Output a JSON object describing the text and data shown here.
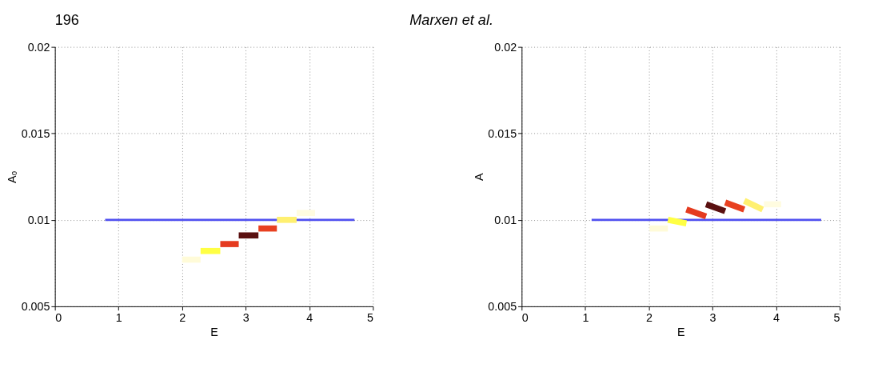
{
  "chart_data": [
    {
      "type": "line",
      "annotations": [
        "196",
        "Marxen et al."
      ],
      "xlabel": "E",
      "ylabel": "A₀",
      "xlim": [
        0,
        5
      ],
      "xticks": [
        0,
        1,
        2,
        3,
        4,
        5
      ],
      "ylim": [
        0.005,
        0.02
      ],
      "yticks": [
        0.005,
        0.01,
        0.015,
        0.02
      ],
      "grid": true,
      "series": [
        {
          "color": "#5050f0",
          "x": [
            0.79,
            4.71
          ],
          "values": [
            0.01,
            0.01
          ]
        },
        {
          "color": "#fffbd8",
          "x": [
            2.0,
            2.29
          ],
          "values": [
            0.0077,
            0.0077
          ]
        },
        {
          "color": "#ffff44",
          "x": [
            2.29,
            2.6
          ],
          "values": [
            0.0082,
            0.0082
          ]
        },
        {
          "color": "#e53b1f",
          "x": [
            2.6,
            2.89
          ],
          "values": [
            0.0086,
            0.0086
          ]
        },
        {
          "color": "#5a1010",
          "x": [
            2.89,
            3.2
          ],
          "values": [
            0.0091,
            0.0091
          ]
        },
        {
          "color": "#e84020",
          "x": [
            3.2,
            3.49
          ],
          "values": [
            0.0095,
            0.0095
          ]
        },
        {
          "color": "#fff070",
          "x": [
            3.49,
            3.8
          ],
          "values": [
            0.01,
            0.01
          ]
        },
        {
          "color": "#fffce0",
          "x": [
            3.8,
            4.09
          ],
          "values": [
            0.0104,
            0.0104
          ]
        }
      ]
    },
    {
      "type": "line",
      "xlabel": "E",
      "ylabel": "A",
      "xlim": [
        0,
        5
      ],
      "xticks": [
        0,
        1,
        2,
        3,
        4,
        5
      ],
      "ylim": [
        0.005,
        0.02
      ],
      "yticks": [
        0.005,
        0.01,
        0.015,
        0.02
      ],
      "grid": true,
      "series": [
        {
          "color": "#5050f0",
          "x": [
            1.1,
            4.71
          ],
          "values": [
            0.01,
            0.01
          ]
        },
        {
          "color": "#fffbd8",
          "x": [
            2.01,
            2.3
          ],
          "values": [
            0.0095,
            0.0095
          ]
        },
        {
          "color": "#ffff44",
          "x": [
            2.3,
            2.59
          ],
          "values": [
            0.01,
            0.0098
          ]
        },
        {
          "color": "#e53b1f",
          "x": [
            2.59,
            2.9
          ],
          "values": [
            0.0106,
            0.0102
          ]
        },
        {
          "color": "#5a1010",
          "x": [
            2.9,
            3.2
          ],
          "values": [
            0.0109,
            0.0105
          ]
        },
        {
          "color": "#e84020",
          "x": [
            3.2,
            3.5
          ],
          "values": [
            0.011,
            0.0106
          ]
        },
        {
          "color": "#fff070",
          "x": [
            3.5,
            3.79
          ],
          "values": [
            0.0111,
            0.0106
          ]
        },
        {
          "color": "#fffce0",
          "x": [
            3.81,
            4.08
          ],
          "values": [
            0.0109,
            0.0109
          ]
        }
      ]
    }
  ]
}
